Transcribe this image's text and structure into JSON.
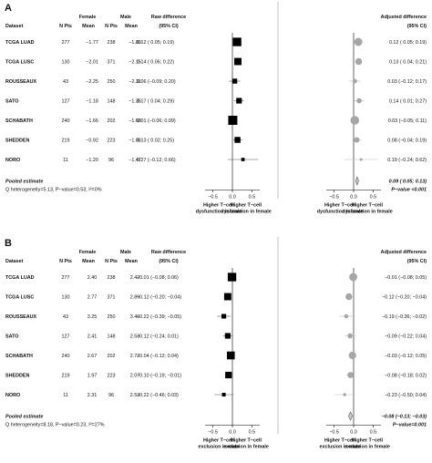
{
  "chart_data": [
    {
      "type": "forest",
      "panel_label": "A",
      "headers": {
        "dataset": "Dataset",
        "female": "Female",
        "male": "Male",
        "n_pts": "N Pts",
        "mean": "Mean",
        "raw": "Raw difference",
        "adjusted": "Adjusted difference",
        "ci": "(95% CI)"
      },
      "rows": [
        {
          "dataset": "TCGA LUAD",
          "f_n": "277",
          "f_mean": "−1.77",
          "m_n": "238",
          "m_mean": "−1.89",
          "raw": {
            "text": "0.12 ( 0.05; 0.19)",
            "est": 0.12,
            "lo": 0.05,
            "hi": 0.19,
            "weight": 0.9
          },
          "adj": {
            "text": "0.12 ( 0.05; 0.19)",
            "est": 0.12,
            "lo": 0.05,
            "hi": 0.19,
            "weight": 0.9
          }
        },
        {
          "dataset": "TCGA LUSC",
          "f_n": "130",
          "f_mean": "−2.01",
          "m_n": "371",
          "m_mean": "−2.15",
          "raw": {
            "text": "0.14 ( 0.06; 0.22)",
            "est": 0.14,
            "lo": 0.06,
            "hi": 0.22,
            "weight": 0.7
          },
          "adj": {
            "text": "0.13 ( 0.04; 0.21)",
            "est": 0.13,
            "lo": 0.04,
            "hi": 0.21,
            "weight": 0.7
          }
        },
        {
          "dataset": "ROUSSEAUX",
          "f_n": "43",
          "f_mean": "−2.25",
          "m_n": "250",
          "m_mean": "−2.31",
          "raw": {
            "text": "0.06 (−0.09; 0.20)",
            "est": 0.06,
            "lo": -0.09,
            "hi": 0.2,
            "weight": 0.35
          },
          "adj": {
            "text": "0.03 (−0.12; 0.17)",
            "est": 0.03,
            "lo": -0.12,
            "hi": 0.17,
            "weight": 0.35
          }
        },
        {
          "dataset": "SATO",
          "f_n": "127",
          "f_mean": "−1.18",
          "m_n": "148",
          "m_mean": "−1.35",
          "raw": {
            "text": "0.17 ( 0.04; 0.29)",
            "est": 0.17,
            "lo": 0.04,
            "hi": 0.29,
            "weight": 0.45
          },
          "adj": {
            "text": "0.14 ( 0.01; 0.27)",
            "est": 0.14,
            "lo": 0.01,
            "hi": 0.27,
            "weight": 0.45
          }
        },
        {
          "dataset": "SCHABATH",
          "f_n": "240",
          "f_mean": "−1.66",
          "m_n": "202",
          "m_mean": "−1.68",
          "raw": {
            "text": "0.01 (−0.06; 0.09)",
            "est": 0.01,
            "lo": -0.06,
            "hi": 0.09,
            "weight": 1.0
          },
          "adj": {
            "text": "0.03 (−0.05; 0.11)",
            "est": 0.03,
            "lo": -0.05,
            "hi": 0.11,
            "weight": 1.0
          }
        },
        {
          "dataset": "SHEDDEN",
          "f_n": "219",
          "f_mean": "−0.92",
          "m_n": "223",
          "m_mean": "−1.06",
          "raw": {
            "text": "0.13 ( 0.02; 0.25)",
            "est": 0.13,
            "lo": 0.02,
            "hi": 0.25,
            "weight": 0.5
          },
          "adj": {
            "text": "0.08 (−0.04; 0.19)",
            "est": 0.08,
            "lo": -0.04,
            "hi": 0.19,
            "weight": 0.5
          }
        },
        {
          "dataset": "NORO",
          "f_n": "11",
          "f_mean": "−1.20",
          "m_n": "96",
          "m_mean": "−1.47",
          "raw": {
            "text": "0.27 (−0.12; 0.66)",
            "est": 0.27,
            "lo": -0.12,
            "hi": 0.66,
            "weight": 0.1
          },
          "adj": {
            "text": "0.19 (−0.24; 0.62)",
            "est": 0.19,
            "lo": -0.24,
            "hi": 0.62,
            "weight": 0.1
          }
        }
      ],
      "pooled": {
        "label": "Pooled estimate",
        "text": "0.09 ( 0.05; 0.13)",
        "est": 0.09,
        "lo": 0.05,
        "hi": 0.13
      },
      "heterogeneity": "Q heterogeneity=5.13, P−value=0.53, I²=0%",
      "pvalue_text": "P−value <0.001",
      "xlim": [
        -0.7,
        0.7
      ],
      "ticks": [
        {
          "value": -0.5,
          "label": "−0.5"
        },
        {
          "value": 0,
          "label": "0.0"
        },
        {
          "value": 0.5,
          "label": "0.5"
        }
      ],
      "raw_axis_labels": {
        "left": [
          "Higher T−cell",
          "dysfunction in male"
        ],
        "right": [
          "Higher T−cell",
          "dysfunction in female"
        ]
      },
      "adj_axis_labels": {
        "left": [
          "Higher T−cell",
          "dysfunction in male"
        ],
        "right": [
          "Higher T−cell",
          "dysfunction in female"
        ]
      }
    },
    {
      "type": "forest",
      "panel_label": "B",
      "headers": {
        "dataset": "Dataset",
        "female": "Female",
        "male": "Male",
        "n_pts": "N Pts",
        "mean": "Mean",
        "raw": "Raw difference",
        "adjusted": "Adjusted difference",
        "ci": "(95% CI)"
      },
      "rows": [
        {
          "dataset": "TCGA LUAD",
          "f_n": "277",
          "f_mean": "2.40",
          "m_n": "238",
          "m_mean": "2.42",
          "raw": {
            "text": "−0.01 (−0.08; 0.06)",
            "est": -0.01,
            "lo": -0.08,
            "hi": 0.06,
            "weight": 0.9
          },
          "adj": {
            "text": "−0.01 (−0.08; 0.05)",
            "est": -0.01,
            "lo": -0.08,
            "hi": 0.05,
            "weight": 0.9
          }
        },
        {
          "dataset": "TCGA LUSC",
          "f_n": "130",
          "f_mean": "2.77",
          "m_n": "371",
          "m_mean": "2.89",
          "raw": {
            "text": "−0.12 (−0.20; −0.04)",
            "est": -0.12,
            "lo": -0.2,
            "hi": -0.04,
            "weight": 0.7
          },
          "adj": {
            "text": "−0.12 (−0.20; −0.04)",
            "est": -0.12,
            "lo": -0.2,
            "hi": -0.04,
            "weight": 0.7
          }
        },
        {
          "dataset": "ROUSSEAUX",
          "f_n": "43",
          "f_mean": "3.25",
          "m_n": "250",
          "m_mean": "3.46",
          "raw": {
            "text": "−0.22 (−0.39; −0.05)",
            "est": -0.22,
            "lo": -0.39,
            "hi": -0.05,
            "weight": 0.3
          },
          "adj": {
            "text": "−0.19 (−0.36; −0.02)",
            "est": -0.19,
            "lo": -0.36,
            "hi": -0.02,
            "weight": 0.3
          }
        },
        {
          "dataset": "SATO",
          "f_n": "127",
          "f_mean": "2.41",
          "m_n": "148",
          "m_mean": "2.53",
          "raw": {
            "text": "−0.12 (−0.24; 0.01)",
            "est": -0.12,
            "lo": -0.24,
            "hi": 0.01,
            "weight": 0.45
          },
          "adj": {
            "text": "−0.09 (−0.22; 0.04)",
            "est": -0.09,
            "lo": -0.22,
            "hi": 0.04,
            "weight": 0.45
          }
        },
        {
          "dataset": "SCHABATH",
          "f_n": "240",
          "f_mean": "2.67",
          "m_n": "202",
          "m_mean": "2.72",
          "raw": {
            "text": "−0.04 (−0.12; 0.04)",
            "est": -0.04,
            "lo": -0.12,
            "hi": 0.04,
            "weight": 0.8
          },
          "adj": {
            "text": "−0.03 (−0.12; 0.05)",
            "est": -0.03,
            "lo": -0.12,
            "hi": 0.05,
            "weight": 0.8
          }
        },
        {
          "dataset": "SHEDDEN",
          "f_n": "219",
          "f_mean": "1.97",
          "m_n": "223",
          "m_mean": "2.07",
          "raw": {
            "text": "−0.10 (−0.19; −0.01)",
            "est": -0.1,
            "lo": -0.19,
            "hi": -0.01,
            "weight": 0.6
          },
          "adj": {
            "text": "−0.08 (−0.18; 0.02)",
            "est": -0.08,
            "lo": -0.18,
            "hi": 0.02,
            "weight": 0.6
          }
        },
        {
          "dataset": "NORO",
          "f_n": "11",
          "f_mean": "2.31",
          "m_n": "96",
          "m_mean": "2.53",
          "raw": {
            "text": "−0.22 (−0.46; 0.03)",
            "est": -0.22,
            "lo": -0.46,
            "hi": 0.03,
            "weight": 0.15
          },
          "adj": {
            "text": "−0.23 (−0.50; 0.04)",
            "est": -0.23,
            "lo": -0.5,
            "hi": 0.04,
            "weight": 0.15
          }
        }
      ],
      "pooled": {
        "label": "Pooled estimate",
        "text": "−0.08 (−0.13; −0.03)",
        "est": -0.08,
        "lo": -0.13,
        "hi": -0.03
      },
      "heterogeneity": "Q heterogeneity=8.18, P−value=0.23, I²=27%",
      "pvalue_text": "P−value=0.001",
      "xlim": [
        -0.7,
        0.7
      ],
      "ticks": [
        {
          "value": -0.5,
          "label": "−0.5"
        },
        {
          "value": 0,
          "label": "0.0"
        },
        {
          "value": 0.5,
          "label": "0.5"
        }
      ],
      "raw_axis_labels": {
        "left": [
          "Higher T−cell",
          "exclusion in male"
        ],
        "right": [
          "Higher T−cell",
          "exclusion in female"
        ]
      },
      "adj_axis_labels": {
        "left": [
          "Higher T−cell",
          "exclusion in male"
        ],
        "right": [
          "Higher T−cell",
          "exclusion in female"
        ]
      }
    }
  ],
  "colors": {
    "raw_marker": "#000000",
    "adjusted_marker": "#a6a6a6",
    "ci_line": "#555555",
    "pooled_fill": "#cccccc",
    "divider": "#999999"
  }
}
